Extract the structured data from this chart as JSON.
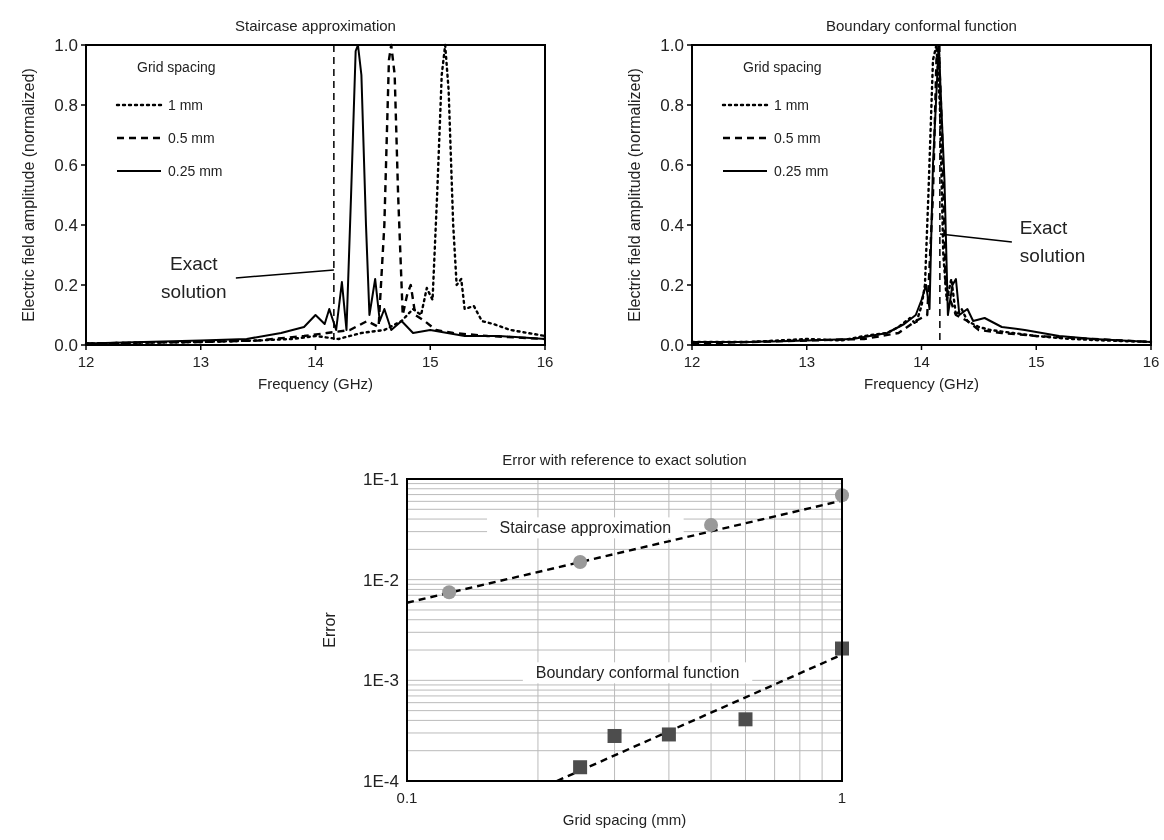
{
  "chart_data": [
    {
      "type": "line",
      "title": "Staircase approximation",
      "xlabel": "Frequency (GHz)",
      "ylabel": "Electric field amplitude (normalized)",
      "legend_title": "Grid spacing",
      "legend": "top left",
      "xlim": [
        12,
        16
      ],
      "ylim": [
        0,
        1
      ],
      "xticks": [
        12,
        13,
        14,
        15,
        16
      ],
      "yticks": [
        {
          "value": 0,
          "label": "0.0"
        },
        0.2,
        0.4,
        0.6,
        0.8,
        {
          "value": 1,
          "label": "1.0"
        }
      ],
      "ref_lines": [
        {
          "axis": "x",
          "value": 14.16,
          "color": "#000000",
          "line_style": "dashed"
        }
      ],
      "annotations": [
        {
          "text": "Exact solution",
          "x": 14.16,
          "y": 0.25
        }
      ],
      "series": [
        {
          "name": "1 mm",
          "color": "#000000",
          "line_style": "dotted",
          "x": [
            12,
            12.5,
            13,
            13.5,
            13.8,
            14.0,
            14.2,
            14.4,
            14.6,
            14.75,
            14.85,
            14.92,
            14.97,
            15.02,
            15.06,
            15.1,
            15.13,
            15.16,
            15.2,
            15.23,
            15.27,
            15.3,
            15.38,
            15.45,
            15.55,
            15.7,
            15.85,
            16
          ],
          "values": [
            0.005,
            0.008,
            0.01,
            0.015,
            0.02,
            0.03,
            0.02,
            0.04,
            0.05,
            0.08,
            0.12,
            0.1,
            0.19,
            0.15,
            0.5,
            0.9,
            1.0,
            0.85,
            0.4,
            0.2,
            0.22,
            0.12,
            0.13,
            0.08,
            0.07,
            0.05,
            0.04,
            0.03
          ]
        },
        {
          "name": "0.5 mm",
          "color": "#000000",
          "line_style": "dashed",
          "x": [
            12,
            12.5,
            13,
            13.5,
            13.9,
            14.1,
            14.3,
            14.45,
            14.55,
            14.6,
            14.64,
            14.66,
            14.69,
            14.72,
            14.76,
            14.8,
            14.83,
            14.87,
            14.95,
            15.05,
            15.2,
            15.5,
            16
          ],
          "values": [
            0.005,
            0.008,
            0.01,
            0.015,
            0.03,
            0.04,
            0.05,
            0.08,
            0.06,
            0.4,
            0.95,
            1.0,
            0.9,
            0.5,
            0.1,
            0.17,
            0.2,
            0.1,
            0.08,
            0.05,
            0.04,
            0.03,
            0.02
          ]
        },
        {
          "name": "0.25 mm",
          "color": "#000000",
          "line_style": "solid",
          "x": [
            12,
            12.5,
            13,
            13.4,
            13.7,
            13.9,
            14.0,
            14.08,
            14.12,
            14.18,
            14.23,
            14.27,
            14.31,
            14.35,
            14.37,
            14.4,
            14.44,
            14.47,
            14.52,
            14.56,
            14.6,
            14.66,
            14.75,
            14.85,
            15,
            15.3,
            15.6,
            16
          ],
          "values": [
            0.005,
            0.01,
            0.015,
            0.02,
            0.04,
            0.06,
            0.1,
            0.07,
            0.12,
            0.05,
            0.21,
            0.05,
            0.5,
            0.98,
            1.0,
            0.9,
            0.4,
            0.1,
            0.22,
            0.08,
            0.12,
            0.05,
            0.08,
            0.04,
            0.05,
            0.03,
            0.03,
            0.02
          ]
        }
      ]
    },
    {
      "type": "line",
      "title": "Boundary conformal function",
      "xlabel": "Frequency (GHz)",
      "ylabel": "Electric field amplitude (normalized)",
      "legend_title": "Grid spacing",
      "legend": "top left",
      "xlim": [
        12,
        16
      ],
      "ylim": [
        0,
        1
      ],
      "xticks": [
        12,
        13,
        14,
        15,
        16
      ],
      "yticks": [
        {
          "value": 0,
          "label": "0.0"
        },
        0.2,
        0.4,
        0.6,
        0.8,
        {
          "value": 1,
          "label": "1.0"
        }
      ],
      "ref_lines": [
        {
          "axis": "x",
          "value": 14.16,
          "color": "#000000",
          "line_style": "dashed"
        }
      ],
      "annotations": [
        {
          "text": "Exact solution",
          "x": 14.16,
          "y": 0.37
        }
      ],
      "series": [
        {
          "name": "1 mm",
          "color": "#000000",
          "line_style": "dotted",
          "x": [
            12,
            12.5,
            13,
            13.3,
            13.5,
            13.7,
            13.8,
            13.9,
            13.95,
            14.0,
            14.03,
            14.06,
            14.1,
            14.13,
            14.16,
            14.19,
            14.22,
            14.26,
            14.3,
            14.35,
            14.4,
            14.5,
            14.6,
            14.8,
            15.0,
            15.3,
            15.6,
            16
          ],
          "values": [
            0.01,
            0.01,
            0.02,
            0.015,
            0.03,
            0.04,
            0.06,
            0.09,
            0.07,
            0.13,
            0.2,
            0.5,
            0.95,
            1.0,
            0.8,
            0.3,
            0.15,
            0.22,
            0.1,
            0.12,
            0.08,
            0.06,
            0.05,
            0.04,
            0.03,
            0.02,
            0.015,
            0.01
          ]
        },
        {
          "name": "0.5 mm",
          "color": "#000000",
          "line_style": "dashed",
          "x": [
            12,
            12.5,
            13,
            13.5,
            13.8,
            13.95,
            14.05,
            14.1,
            14.13,
            14.15,
            14.18,
            14.21,
            14.25,
            14.3,
            14.4,
            14.5,
            14.7,
            15,
            15.5,
            16
          ],
          "values": [
            0.005,
            0.01,
            0.015,
            0.02,
            0.04,
            0.08,
            0.1,
            0.5,
            0.95,
            1.0,
            0.7,
            0.2,
            0.15,
            0.1,
            0.08,
            0.05,
            0.04,
            0.03,
            0.02,
            0.01
          ]
        },
        {
          "name": "0.25 mm",
          "color": "#000000",
          "line_style": "solid",
          "x": [
            12,
            12.5,
            13,
            13.4,
            13.7,
            13.85,
            13.95,
            14.0,
            14.04,
            14.07,
            14.1,
            14.15,
            14.2,
            14.23,
            14.27,
            14.3,
            14.33,
            14.4,
            14.45,
            14.55,
            14.7,
            14.9,
            15.2,
            15.5,
            16
          ],
          "values": [
            0.01,
            0.01,
            0.015,
            0.02,
            0.04,
            0.07,
            0.1,
            0.15,
            0.2,
            0.12,
            0.6,
            1.0,
            0.55,
            0.1,
            0.2,
            0.22,
            0.1,
            0.12,
            0.08,
            0.09,
            0.06,
            0.05,
            0.03,
            0.02,
            0.01
          ]
        }
      ]
    },
    {
      "type": "scatter",
      "title": "Error with reference to exact solution",
      "xlabel": "Grid spacing (mm)",
      "ylabel": "Error",
      "log": "xy",
      "grid": true,
      "legend": false,
      "xlim": [
        0.1,
        1
      ],
      "xticks": [
        0.1,
        {
          "value": 0.2,
          "label": null
        },
        {
          "value": 0.3,
          "label": null
        },
        {
          "value": 0.4,
          "label": null
        },
        {
          "value": 0.5,
          "label": null
        },
        {
          "value": 0.6,
          "label": null
        },
        {
          "value": 0.7,
          "label": null
        },
        {
          "value": 0.8,
          "label": null
        },
        {
          "value": 0.9,
          "label": null
        },
        1
      ],
      "ylim": [
        0.0001,
        0.1
      ],
      "yticks": [
        {
          "value": 0.0001,
          "label": "1E-4"
        },
        {
          "value": 0.0002,
          "label": null
        },
        {
          "value": 0.0003,
          "label": null
        },
        {
          "value": 0.0004,
          "label": null
        },
        {
          "value": 0.0005,
          "label": null
        },
        {
          "value": 0.0006,
          "label": null
        },
        {
          "value": 0.0007,
          "label": null
        },
        {
          "value": 0.0008,
          "label": null
        },
        {
          "value": 0.0009,
          "label": null
        },
        {
          "value": 0.001,
          "label": "1E-3"
        },
        {
          "value": 0.002,
          "label": null
        },
        {
          "value": 0.003,
          "label": null
        },
        {
          "value": 0.004,
          "label": null
        },
        {
          "value": 0.005,
          "label": null
        },
        {
          "value": 0.006,
          "label": null
        },
        {
          "value": 0.007,
          "label": null
        },
        {
          "value": 0.008,
          "label": null
        },
        {
          "value": 0.009,
          "label": null
        },
        {
          "value": 0.01,
          "label": "1E-2"
        },
        {
          "value": 0.02,
          "label": null
        },
        {
          "value": 0.03,
          "label": null
        },
        {
          "value": 0.04,
          "label": null
        },
        {
          "value": 0.05,
          "label": null
        },
        {
          "value": 0.06,
          "label": null
        },
        {
          "value": 0.07,
          "label": null
        },
        {
          "value": 0.08,
          "label": null
        },
        {
          "value": 0.09,
          "label": null
        },
        {
          "value": 0.1,
          "label": "1E-1"
        }
      ],
      "series": [
        {
          "type": "line",
          "color": "#000000",
          "line_style": "dashed",
          "marker": "none",
          "x": [
            0.1,
            1
          ],
          "values": [
            0.0059,
            0.061
          ]
        },
        {
          "type": "line",
          "color": "#000000",
          "line_style": "dashed",
          "marker": "none",
          "x": [
            0.221,
            1
          ],
          "values": [
            0.0001,
            0.0018
          ]
        },
        {
          "name": "Staircase approximation",
          "color": "#999999",
          "marker": "circle",
          "x": [
            0.125,
            0.25,
            0.5,
            1
          ],
          "values": [
            0.0075,
            0.015,
            0.035,
            0.069
          ]
        },
        {
          "name": "Boundary conformal function",
          "color": "#4d4d4d",
          "marker": "square",
          "x": [
            0.25,
            0.3,
            0.4,
            0.6,
            1
          ],
          "values": [
            0.000137,
            0.00028,
            0.00029,
            0.00041,
            0.00207
          ]
        }
      ]
    }
  ]
}
